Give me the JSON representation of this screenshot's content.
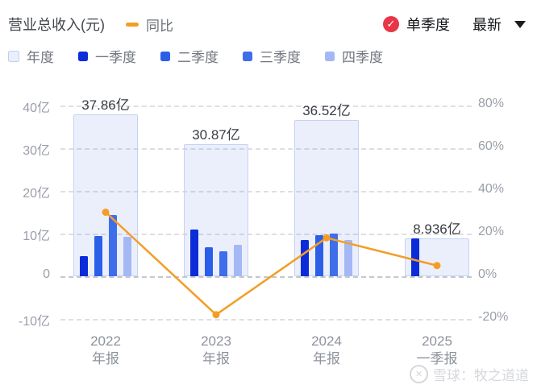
{
  "header": {
    "title": "营业总收入(元)",
    "line_series_label": "同比",
    "single_quarter_toggle": "单季度",
    "sort_dropdown_value": "最新"
  },
  "legend": {
    "items": [
      {
        "label": "年度",
        "color": "#e9effc",
        "border": "#bccff2"
      },
      {
        "label": "一季度",
        "color": "#0b2cd8"
      },
      {
        "label": "二季度",
        "color": "#2b5fe8"
      },
      {
        "label": "三季度",
        "color": "#3f6eeb"
      },
      {
        "label": "四季度",
        "color": "#a3b8f4"
      }
    ]
  },
  "colors": {
    "line": "#f49d25",
    "check_badge": "#e83648",
    "annual_fill": "rgba(110,145,235,0.14)",
    "annual_border": "#c5d3f2"
  },
  "chart_data": {
    "type": "bar",
    "subtype": "grouped quarterly bars inside translucent annual bars + YoY line on right axis",
    "title": "营业总收入(元) 同比",
    "categories": [
      {
        "line1": "2022",
        "line2": "年报"
      },
      {
        "line1": "2023",
        "line2": "年报"
      },
      {
        "line1": "2024",
        "line2": "年报"
      },
      {
        "line1": "2025",
        "line2": "一季报"
      }
    ],
    "annual_series": {
      "name": "年度",
      "values_yi": [
        37.86,
        30.87,
        36.52,
        8.936
      ],
      "labels": [
        "37.86亿",
        "30.87亿",
        "36.52亿",
        "8.936亿"
      ]
    },
    "quarter_series": [
      {
        "name": "一季度",
        "color": "#0b2cd8",
        "values_yi": [
          4.8,
          10.9,
          8.4,
          8.936
        ]
      },
      {
        "name": "二季度",
        "color": "#2b5fe8",
        "values_yi": [
          9.5,
          6.7,
          9.6,
          null
        ]
      },
      {
        "name": "三季度",
        "color": "#3f6eeb",
        "values_yi": [
          14.4,
          5.9,
          10.0,
          null
        ]
      },
      {
        "name": "四季度",
        "color": "#a3b8f4",
        "values_yi": [
          9.2,
          7.4,
          8.5,
          null
        ]
      }
    ],
    "line_series": {
      "name": "同比",
      "color": "#f49d25",
      "values_pct": [
        30,
        -18,
        18,
        5
      ]
    },
    "left_axis": {
      "unit": "亿",
      "ticks": [
        "40亿",
        "30亿",
        "20亿",
        "10亿",
        "0",
        "-10亿"
      ],
      "values": [
        40,
        30,
        20,
        10,
        0,
        -10
      ],
      "ylim": [
        -15,
        45
      ]
    },
    "right_axis": {
      "unit": "%",
      "ticks": [
        "80%",
        "60%",
        "40%",
        "20%",
        "0%",
        "-20%"
      ],
      "values": [
        80,
        60,
        40,
        20,
        0,
        -20
      ],
      "ylim": [
        -30,
        90
      ]
    },
    "grid": "horizontal dashed lines, legend top-left, no vertical axis lines"
  },
  "watermark": {
    "text": "雪球：牧之道道"
  }
}
